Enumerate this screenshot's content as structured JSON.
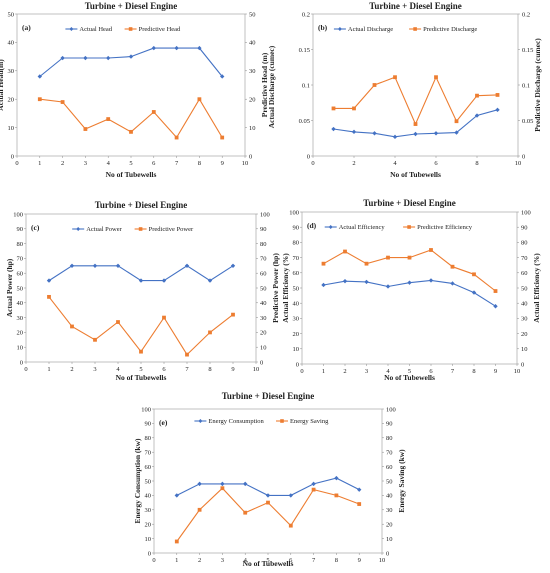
{
  "figure": {
    "colors": {
      "blue": "#4472c4",
      "orange": "#ed7d31"
    }
  },
  "chart_data": [
    {
      "id": "a",
      "type": "line",
      "panel_label": "(a)",
      "title": "Turbine + Diesel Engine",
      "xlabel": "No of Tubewells",
      "ylabel": "Actual Head(m)",
      "y2label": "Predictive Head (m)",
      "y2label_overlap": "Actual Discharge (cumec)",
      "xlim": [
        0,
        10
      ],
      "ylim": [
        0,
        50
      ],
      "y2lim": [
        0,
        50
      ],
      "xticks": [
        0,
        1,
        2,
        3,
        4,
        5,
        6,
        7,
        8,
        9,
        10
      ],
      "yticks": [
        0,
        10,
        20,
        30,
        40,
        50
      ],
      "y2ticks": [
        0,
        10,
        20,
        30,
        40,
        50
      ],
      "legend_position": "top-center",
      "x": [
        1,
        2,
        3,
        4,
        5,
        6,
        7,
        8,
        9
      ],
      "series": [
        {
          "name": "Actual Head",
          "color": "#4472c4",
          "marker": "diamond",
          "axis": "left",
          "values": [
            28,
            34.5,
            34.5,
            34.5,
            35,
            38,
            38,
            38,
            28
          ]
        },
        {
          "name": "Predictive Head",
          "color": "#ed7d31",
          "marker": "square",
          "axis": "right",
          "values": [
            20,
            19,
            9.5,
            13,
            8.5,
            15.5,
            6.5,
            20,
            6.5
          ]
        }
      ]
    },
    {
      "id": "b",
      "type": "line",
      "panel_label": "(b)",
      "title": "Turbine + Diesel Engine",
      "xlabel": "No of Tubewells",
      "ylabel": "",
      "y2label": "Predictive Discharge (cumec)",
      "xlim": [
        0,
        10
      ],
      "ylim": [
        0,
        0.2
      ],
      "y2lim": [
        0,
        0.2
      ],
      "xticks": [
        0,
        2,
        4,
        6,
        8,
        10
      ],
      "yticks": [
        0,
        0.05,
        0.1,
        0.15,
        0.2
      ],
      "y2ticks": [
        0,
        0.05,
        0.1,
        0.15,
        0.2
      ],
      "legend_position": "top-center",
      "x": [
        1,
        2,
        3,
        4,
        5,
        6,
        7,
        8,
        9
      ],
      "series": [
        {
          "name": "Actual Discharge",
          "color": "#4472c4",
          "marker": "diamond",
          "axis": "left",
          "values": [
            0.038,
            0.034,
            0.032,
            0.027,
            0.031,
            0.032,
            0.033,
            0.057,
            0.065
          ]
        },
        {
          "name": "Predictive Discharge",
          "color": "#ed7d31",
          "marker": "square",
          "axis": "right",
          "values": [
            0.067,
            0.067,
            0.1,
            0.111,
            0.045,
            0.111,
            0.049,
            0.085,
            0.086
          ]
        }
      ]
    },
    {
      "id": "c",
      "type": "line",
      "panel_label": "(c)",
      "title": "Turbine + Diesel Engine",
      "xlabel": "No of Tubewells",
      "ylabel": "Actual Power (hp)",
      "y2label": "Predictive Power (hp)",
      "xlim": [
        0,
        10
      ],
      "ylim": [
        0,
        100
      ],
      "y2lim": [
        0,
        100
      ],
      "xticks": [
        0,
        1,
        2,
        3,
        4,
        5,
        6,
        7,
        8,
        9,
        10
      ],
      "yticks": [
        0,
        10,
        20,
        30,
        40,
        50,
        60,
        70,
        80,
        90,
        100
      ],
      "y2ticks": [
        0,
        10,
        20,
        30,
        40,
        50,
        60,
        70,
        80,
        90,
        100
      ],
      "legend_position": "top-center",
      "x": [
        1,
        2,
        3,
        4,
        5,
        6,
        7,
        8,
        9
      ],
      "series": [
        {
          "name": "Actual Power",
          "color": "#4472c4",
          "marker": "diamond",
          "axis": "left",
          "values": [
            55,
            65,
            65,
            65,
            55,
            55,
            65,
            55,
            65
          ]
        },
        {
          "name": "Predictive Power",
          "color": "#ed7d31",
          "marker": "square",
          "axis": "right",
          "values": [
            44,
            24,
            15,
            27,
            7,
            30,
            5,
            20,
            32
          ]
        }
      ]
    },
    {
      "id": "d",
      "type": "line",
      "panel_label": "(d)",
      "title": "Turbine + Diesel Engine",
      "xlabel": "No of Tubewells",
      "ylabel": "Actual Efficiency (%)",
      "y2label": "Actual Efficiency (%)",
      "xlim": [
        0,
        10
      ],
      "ylim": [
        0,
        100
      ],
      "y2lim": [
        0,
        100
      ],
      "xticks": [
        0,
        1,
        2,
        3,
        4,
        5,
        6,
        7,
        8,
        9,
        10
      ],
      "yticks": [
        0,
        10,
        20,
        30,
        40,
        50,
        60,
        70,
        80,
        90,
        100
      ],
      "y2ticks": [
        0,
        10,
        20,
        30,
        40,
        50,
        60,
        70,
        80,
        90,
        100
      ],
      "legend_position": "top-center",
      "x": [
        1,
        2,
        3,
        4,
        5,
        6,
        7,
        8,
        9
      ],
      "series": [
        {
          "name": "Actual Efficiency",
          "color": "#4472c4",
          "marker": "diamond",
          "axis": "left",
          "values": [
            52,
            54.5,
            54,
            51,
            53.5,
            55,
            53,
            47,
            38
          ]
        },
        {
          "name": "Predictive Efficiency",
          "color": "#ed7d31",
          "marker": "square",
          "axis": "right",
          "values": [
            66,
            74,
            66,
            70,
            70,
            75,
            64,
            59,
            48
          ]
        }
      ]
    },
    {
      "id": "e",
      "type": "line",
      "panel_label": "(e)",
      "title": "Turbine + Diesel Engine",
      "xlabel": "No of Tubewells",
      "ylabel": "Energy Consumption (kw)",
      "y2label": "Energy Saving (kw)",
      "xlim": [
        0,
        10
      ],
      "ylim": [
        0,
        100
      ],
      "y2lim": [
        0,
        100
      ],
      "xticks": [
        0,
        1,
        2,
        3,
        4,
        5,
        6,
        7,
        8,
        9,
        10
      ],
      "yticks": [
        0,
        10,
        20,
        30,
        40,
        50,
        60,
        70,
        80,
        90,
        100
      ],
      "y2ticks": [
        0,
        10,
        20,
        30,
        40,
        50,
        60,
        70,
        80,
        90,
        100
      ],
      "legend_position": "top-center",
      "x": [
        1,
        2,
        3,
        4,
        5,
        6,
        7,
        8,
        9
      ],
      "series": [
        {
          "name": "Energy Consumption",
          "color": "#4472c4",
          "marker": "diamond",
          "axis": "left",
          "values": [
            40,
            48,
            48,
            48,
            40,
            40,
            48,
            52,
            44
          ]
        },
        {
          "name": "Energy Saving",
          "color": "#ed7d31",
          "marker": "square",
          "axis": "right",
          "values": [
            8,
            30,
            45,
            28,
            35,
            19,
            44,
            40,
            34
          ]
        }
      ]
    }
  ]
}
